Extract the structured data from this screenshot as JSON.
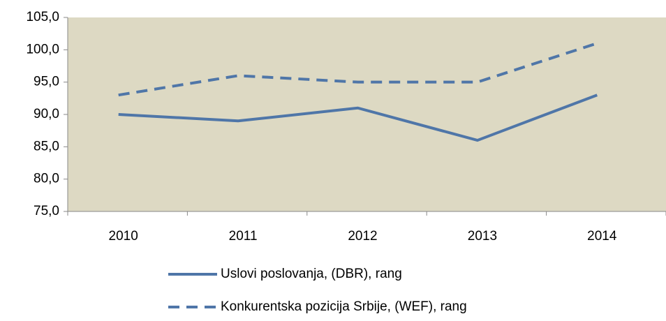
{
  "chart_data": {
    "type": "line",
    "categories": [
      "2010",
      "2011",
      "2012",
      "2013",
      "2014"
    ],
    "series": [
      {
        "name": "Uslovi poslovanja, (DBR), rang",
        "color": "#4f76a8",
        "dash": "solid",
        "values": [
          90,
          89,
          91,
          86,
          93
        ]
      },
      {
        "name": "Konkurentska pozicija Srbije, (WEF), rang",
        "color": "#4f76a8",
        "dash": "dashed",
        "values": [
          93,
          96,
          95,
          95,
          101
        ]
      }
    ],
    "ylim": [
      75,
      105
    ],
    "yticks": [
      {
        "value": 75,
        "label": "75,0"
      },
      {
        "value": 80,
        "label": "80,0"
      },
      {
        "value": 85,
        "label": "85,0"
      },
      {
        "value": 90,
        "label": "90,0"
      },
      {
        "value": 95,
        "label": "95,0"
      },
      {
        "value": 100,
        "label": "100,0"
      },
      {
        "value": 105,
        "label": "105,0"
      }
    ],
    "background": "#ddd9c3"
  }
}
